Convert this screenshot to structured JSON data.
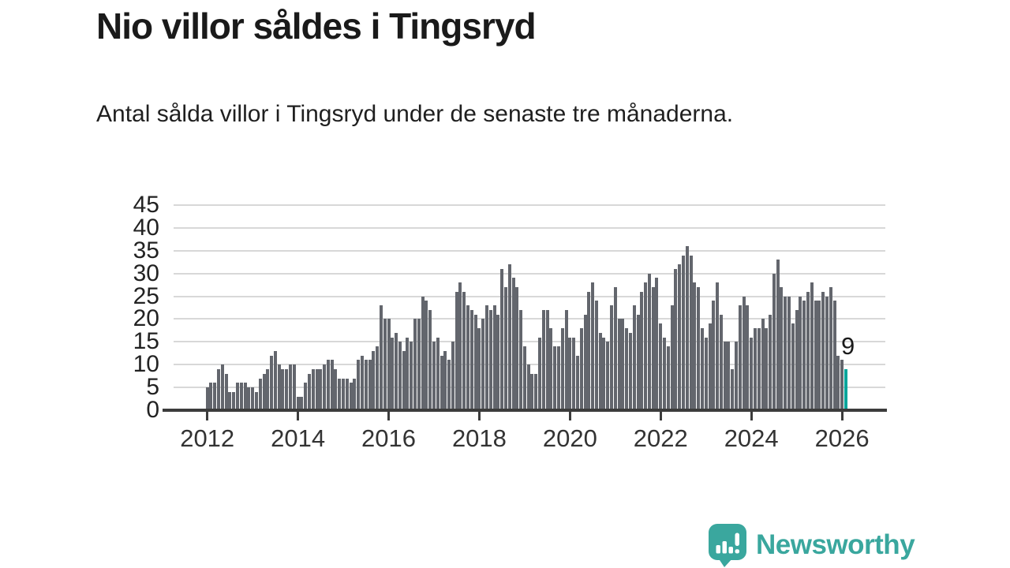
{
  "header": {
    "title": "Nio villor såldes i Tingsryd",
    "subtitle": "Antal sålda villor i Tingsryd under de senaste tre månaderna."
  },
  "annotation": {
    "last_value_label": "9"
  },
  "logo": {
    "text": "Newsworthy",
    "icon": "newsworthy-bubble-chart-icon"
  },
  "colors": {
    "bar": "#63666d",
    "highlight": "#00a49a",
    "logo_teal": "#3aa79e",
    "grid": "#d8d8d8",
    "axis": "#3c3c3c",
    "text": "#1a1a1a"
  },
  "chart_data": {
    "type": "bar",
    "title": "Nio villor såldes i Tingsryd",
    "subtitle": "Antal sålda villor i Tingsryd under de senaste tre månaderna.",
    "frequency": "monthly",
    "start_month": "2012-01",
    "end_month": "2026-02",
    "ylim": [
      0,
      45
    ],
    "grid": true,
    "y_ticks": [
      0,
      5,
      10,
      15,
      20,
      25,
      30,
      35,
      40,
      45
    ],
    "x_tick_labels": [
      "2012",
      "2014",
      "2016",
      "2018",
      "2020",
      "2022",
      "2024",
      "2026"
    ],
    "highlight_last": true,
    "last_value": 9,
    "values": [
      5,
      6,
      6,
      9,
      10,
      8,
      4,
      4,
      6,
      6,
      6,
      5,
      5,
      4,
      7,
      8,
      9,
      12,
      13,
      10,
      9,
      9,
      10,
      10,
      3,
      3,
      6,
      8,
      9,
      9,
      9,
      10,
      11,
      11,
      9,
      7,
      7,
      7,
      6,
      7,
      11,
      12,
      11,
      11,
      13,
      14,
      23,
      20,
      20,
      16,
      17,
      15,
      13,
      16,
      15,
      20,
      20,
      25,
      24,
      22,
      15,
      16,
      12,
      13,
      11,
      15,
      26,
      28,
      26,
      23,
      22,
      21,
      18,
      20,
      23,
      22,
      23,
      21,
      31,
      27,
      32,
      29,
      27,
      22,
      14,
      10,
      8,
      8,
      16,
      22,
      22,
      18,
      14,
      14,
      18,
      22,
      16,
      16,
      12,
      18,
      21,
      26,
      28,
      24,
      17,
      16,
      15,
      23,
      27,
      20,
      20,
      18,
      17,
      23,
      21,
      26,
      28,
      30,
      27,
      29,
      19,
      16,
      14,
      23,
      31,
      32,
      34,
      36,
      34,
      28,
      27,
      18,
      16,
      19,
      24,
      28,
      21,
      15,
      15,
      9,
      15,
      23,
      25,
      23,
      16,
      18,
      18,
      20,
      18,
      21,
      30,
      33,
      27,
      25,
      25,
      19,
      22,
      25,
      24,
      26,
      28,
      24,
      24,
      26,
      25,
      27,
      24,
      12,
      11,
      9
    ]
  }
}
